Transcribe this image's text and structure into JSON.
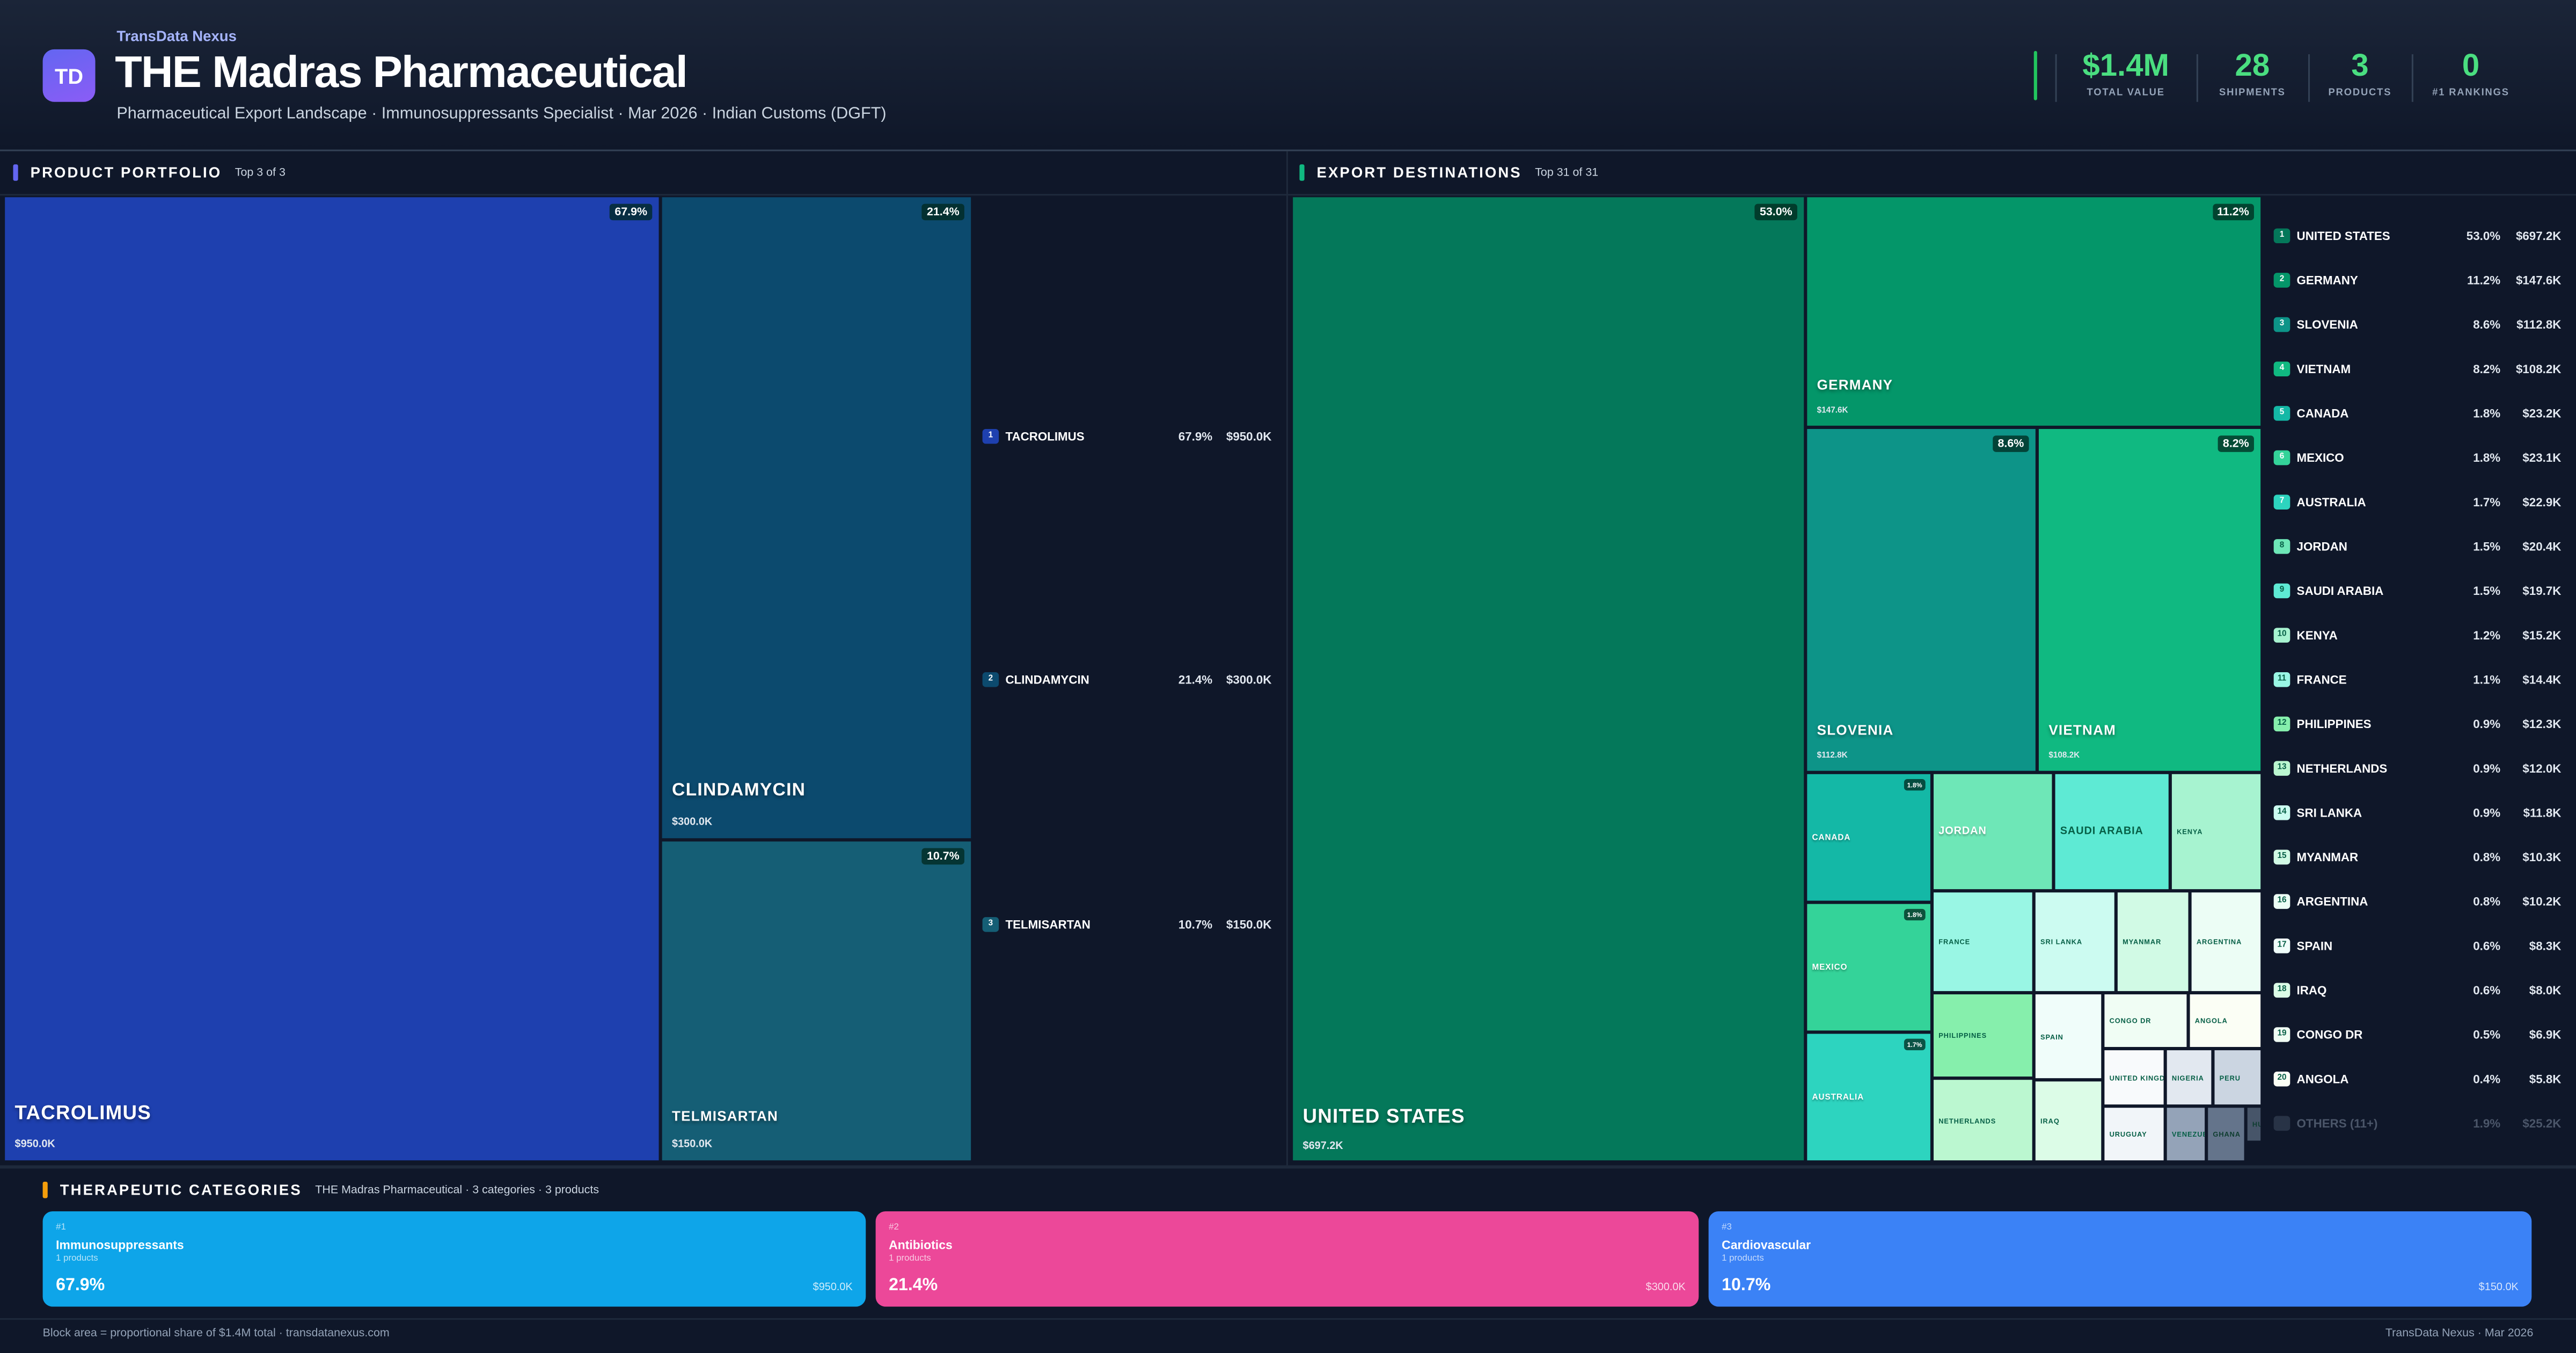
{
  "header": {
    "brand": "TransData Nexus",
    "logo_text": "TD",
    "title": "THE Madras Pharmaceutical",
    "subtitle": "Pharmaceutical Export Landscape · Immunosuppressants Specialist · Mar 2026 · Indian Customs (DGFT)"
  },
  "stats": [
    {
      "value": "$1.4M",
      "label": "TOTAL VALUE"
    },
    {
      "value": "28",
      "label": "SHIPMENTS"
    },
    {
      "value": "3",
      "label": "PRODUCTS"
    },
    {
      "value": "0",
      "label": "#1 RANKINGS"
    }
  ],
  "products_section": {
    "title": "PRODUCT PORTFOLIO",
    "subtitle": "Top 3 of 3",
    "accent": "#6366f1"
  },
  "products": [
    {
      "rank": "1",
      "name": "TACROLIMUS",
      "pct": "67.9%",
      "value": "$950.0K",
      "color": "#1e40af"
    },
    {
      "rank": "2",
      "name": "CLINDAMYCIN",
      "pct": "21.4%",
      "value": "$300.0K",
      "color": "#0c4a6e"
    },
    {
      "rank": "3",
      "name": "TELMISARTAN",
      "pct": "10.7%",
      "value": "$150.0K",
      "color": "#155e75"
    }
  ],
  "destinations_section": {
    "title": "EXPORT DESTINATIONS",
    "subtitle": "Top 31 of 31",
    "accent": "#10b981"
  },
  "destinations": [
    {
      "rank": "1",
      "name": "UNITED STATES",
      "pct": "53.0%",
      "value": "$697.2K",
      "color": "#04785a"
    },
    {
      "rank": "2",
      "name": "GERMANY",
      "pct": "11.2%",
      "value": "$147.6K",
      "color": "#049669"
    },
    {
      "rank": "3",
      "name": "SLOVENIA",
      "pct": "8.6%",
      "value": "$112.8K",
      "color": "#0d9488"
    },
    {
      "rank": "4",
      "name": "VIETNAM",
      "pct": "8.2%",
      "value": "$108.2K",
      "color": "#10b981"
    },
    {
      "rank": "5",
      "name": "CANADA",
      "pct": "1.8%",
      "value": "$23.2K",
      "color": "#14b8a6"
    },
    {
      "rank": "6",
      "name": "MEXICO",
      "pct": "1.8%",
      "value": "$23.1K",
      "color": "#34d399"
    },
    {
      "rank": "7",
      "name": "AUSTRALIA",
      "pct": "1.7%",
      "value": "$22.9K",
      "color": "#2dd4bf"
    },
    {
      "rank": "8",
      "name": "JORDAN",
      "pct": "1.5%",
      "value": "$20.4K",
      "color": "#6ee7b7"
    },
    {
      "rank": "9",
      "name": "SAUDI ARABIA",
      "pct": "1.5%",
      "value": "$19.7K",
      "color": "#5eead4"
    },
    {
      "rank": "10",
      "name": "KENYA",
      "pct": "1.2%",
      "value": "$15.2K",
      "color": "#a7f3d0"
    },
    {
      "rank": "11",
      "name": "FRANCE",
      "pct": "1.1%",
      "value": "$14.4K",
      "color": "#99f6e4"
    },
    {
      "rank": "12",
      "name": "PHILIPPINES",
      "pct": "0.9%",
      "value": "$12.3K",
      "color": "#86efac"
    },
    {
      "rank": "13",
      "name": "NETHERLANDS",
      "pct": "0.9%",
      "value": "$12.0K",
      "color": "#bbf7d0"
    },
    {
      "rank": "14",
      "name": "SRI LANKA",
      "pct": "0.9%",
      "value": "$11.8K",
      "color": "#ccfbf1"
    },
    {
      "rank": "15",
      "name": "MYANMAR",
      "pct": "0.8%",
      "value": "$10.3K",
      "color": "#d1fae5"
    },
    {
      "rank": "16",
      "name": "ARGENTINA",
      "pct": "0.8%",
      "value": "$10.2K",
      "color": "#ecfdf5"
    },
    {
      "rank": "17",
      "name": "SPAIN",
      "pct": "0.6%",
      "value": "$8.3K",
      "color": "#f0fdfa"
    },
    {
      "rank": "18",
      "name": "IRAQ",
      "pct": "0.6%",
      "value": "$8.0K",
      "color": "#dcfce7"
    },
    {
      "rank": "19",
      "name": "CONGO DR",
      "pct": "0.5%",
      "value": "$6.9K",
      "color": "#f0fdf4"
    },
    {
      "rank": "20",
      "name": "ANGOLA",
      "pct": "0.4%",
      "value": "$5.8K",
      "color": "#fbfef5"
    }
  ],
  "others": {
    "name": "OTHERS (11+)",
    "pct": "1.9%",
    "value": "$25.2K",
    "color": "#475569"
  },
  "extra_tiles": [
    {
      "name": "UNITED KINGDOM",
      "color": "#f8fafc"
    },
    {
      "name": "NIGERIA",
      "color": "#e2e8f0"
    },
    {
      "name": "PERU",
      "color": "#cbd5e1"
    },
    {
      "name": "URUGUAY",
      "color": "#f1f5f9"
    },
    {
      "name": "VENEZUELA",
      "color": "#94a3b8"
    },
    {
      "name": "GHANA",
      "color": "#64748b"
    },
    {
      "name": "HUN",
      "color": "#475569"
    }
  ],
  "categories_section": {
    "title": "THERAPEUTIC CATEGORIES",
    "subtitle": "THE Madras Pharmaceutical · 3 categories · 3 products",
    "accent": "#f59e0b"
  },
  "categories": [
    {
      "rank": "#1",
      "name": "Immunosuppressants",
      "products": "1 products",
      "pct": "67.9%",
      "value": "$950.0K",
      "color": "#0ea5e9"
    },
    {
      "rank": "#2",
      "name": "Antibiotics",
      "products": "1 products",
      "pct": "21.4%",
      "value": "$300.0K",
      "color": "#ec4899"
    },
    {
      "rank": "#3",
      "name": "Cardiovascular",
      "products": "1 products",
      "pct": "10.7%",
      "value": "$150.0K",
      "color": "#3b82f6"
    }
  ],
  "footer": {
    "left": "Block area = proportional share of $1.4M total · transdatanexus.com",
    "right": "TransData Nexus · Mar 2026"
  }
}
